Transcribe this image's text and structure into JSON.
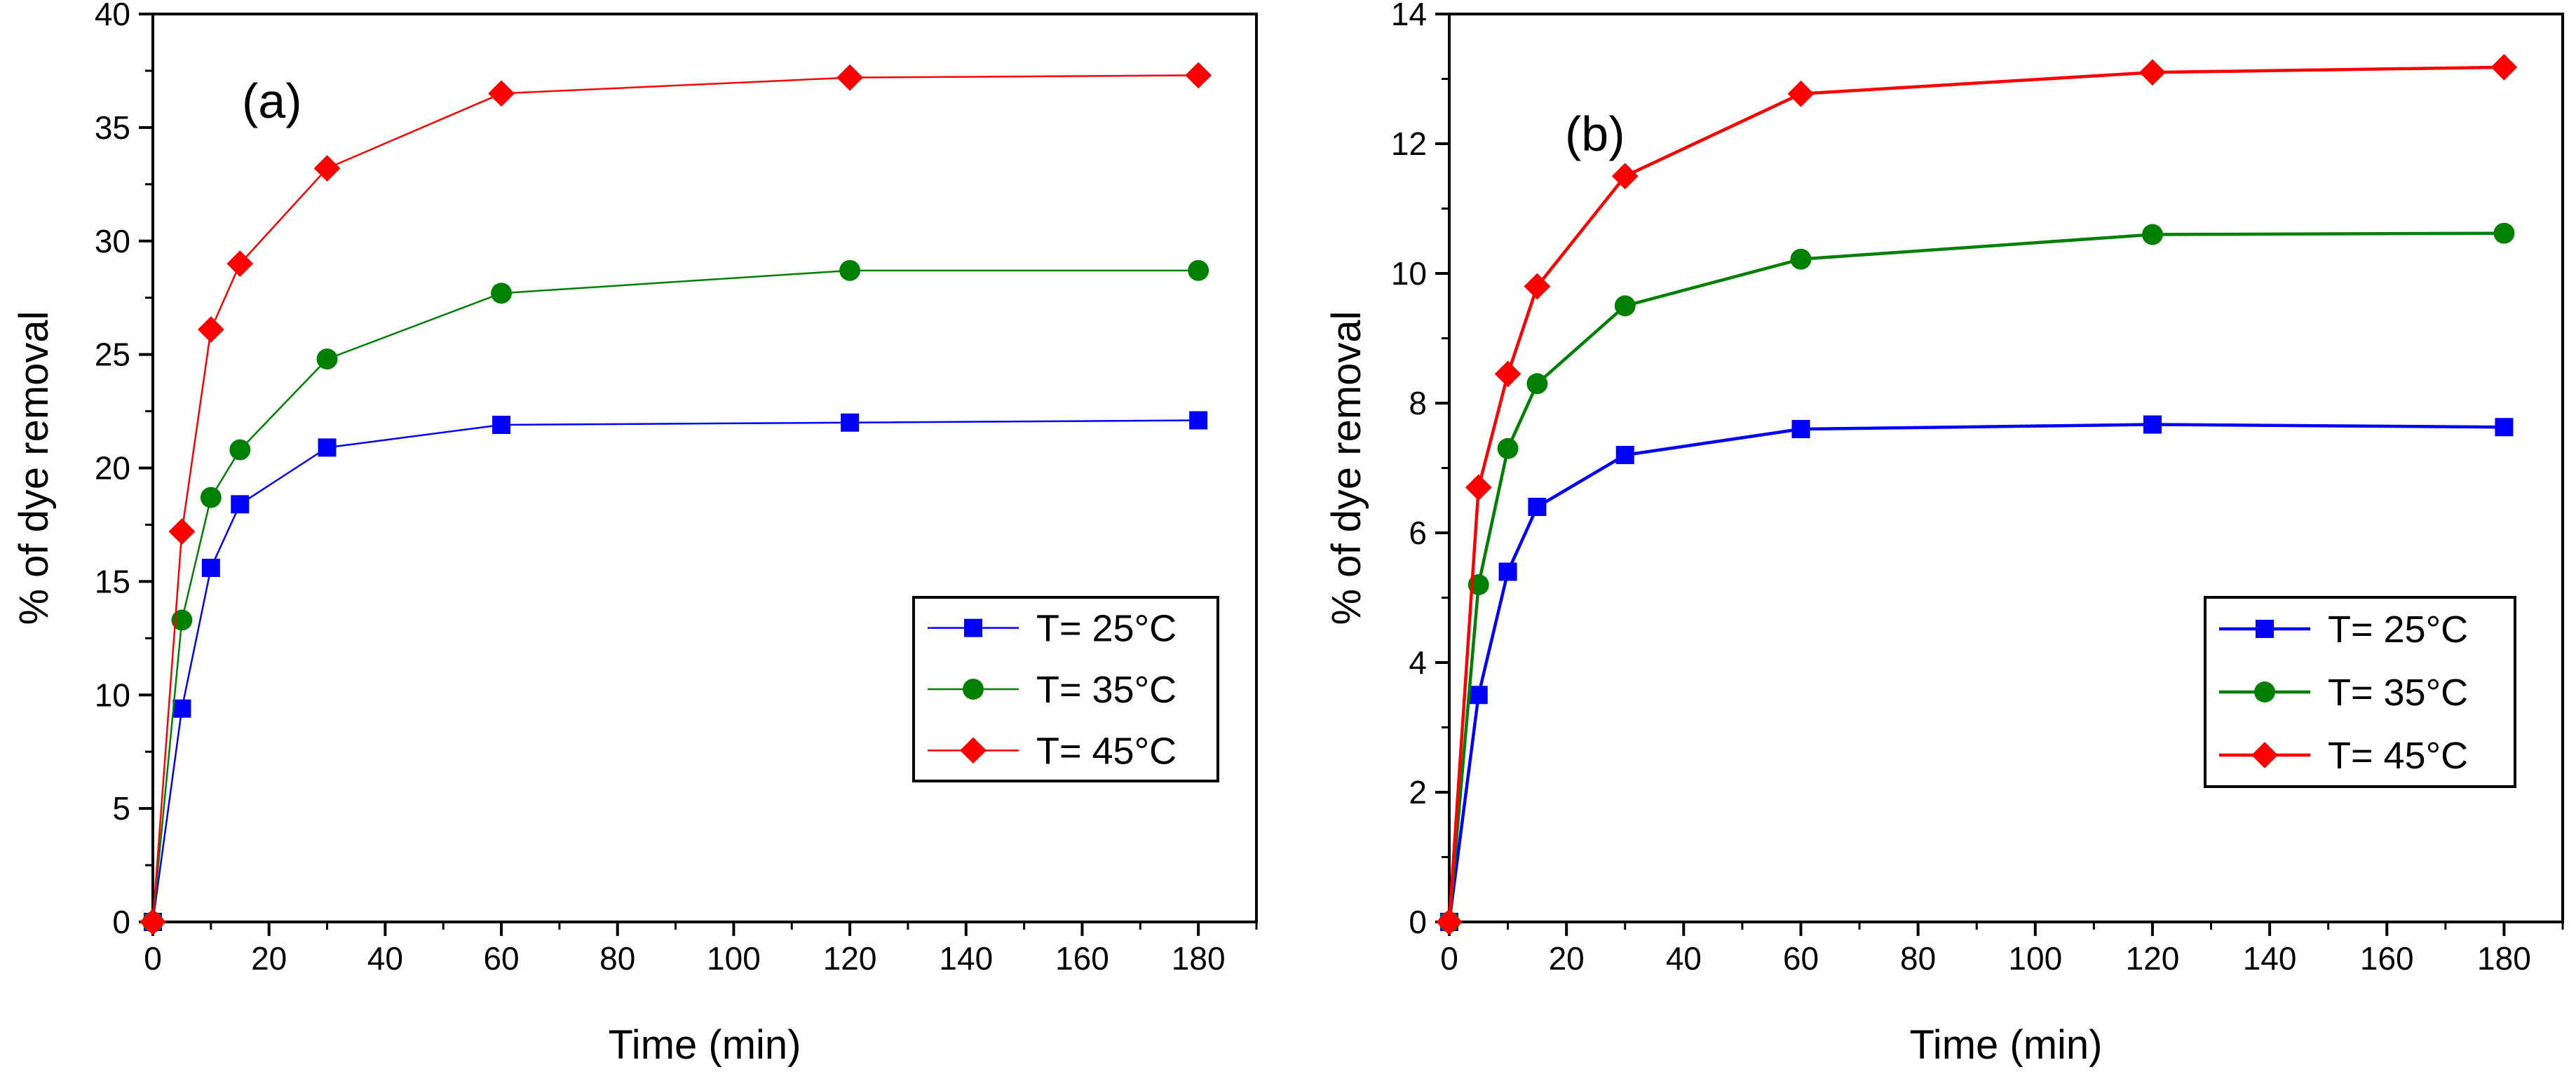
{
  "chart_data": [
    {
      "id": "a",
      "type": "line",
      "panel_label": "(a)",
      "xlabel": "Time (min)",
      "ylabel": "% of dye removal",
      "xlim": [
        0,
        190
      ],
      "ylim": [
        0,
        40
      ],
      "xticks": [
        0,
        20,
        40,
        60,
        80,
        100,
        120,
        140,
        160,
        180
      ],
      "yticks": [
        0,
        5,
        10,
        15,
        20,
        25,
        30,
        35,
        40
      ],
      "legend_position": "center-right",
      "x": [
        0,
        5,
        10,
        15,
        30,
        60,
        120,
        180
      ],
      "series": [
        {
          "name": "T= 25°C",
          "color": "#0000ff",
          "marker": "square",
          "values": [
            0,
            9.4,
            15.6,
            18.4,
            20.9,
            21.9,
            22.0,
            22.1
          ]
        },
        {
          "name": "T= 35°C",
          "color": "#008000",
          "marker": "circle",
          "values": [
            0,
            13.3,
            18.7,
            20.8,
            24.8,
            27.7,
            28.7,
            28.7
          ]
        },
        {
          "name": "T= 45°C",
          "color": "#ff0000",
          "marker": "diamond",
          "values": [
            0,
            17.2,
            26.1,
            29.0,
            33.2,
            36.5,
            37.2,
            37.3
          ]
        }
      ]
    },
    {
      "id": "b",
      "type": "line",
      "panel_label": "(b)",
      "xlabel": "Time (min)",
      "ylabel": "% of dye removal",
      "xlim": [
        0,
        190
      ],
      "ylim": [
        0,
        14
      ],
      "xticks": [
        0,
        20,
        40,
        60,
        80,
        100,
        120,
        140,
        160,
        180
      ],
      "yticks": [
        0,
        2,
        4,
        6,
        8,
        10,
        12,
        14
      ],
      "legend_position": "center-right",
      "x": [
        0,
        5,
        10,
        15,
        30,
        60,
        120,
        180
      ],
      "series": [
        {
          "name": "T= 25°C",
          "color": "#0000ff",
          "marker": "square",
          "values": [
            0,
            3.5,
            5.4,
            6.4,
            7.2,
            7.6,
            7.67,
            7.63
          ]
        },
        {
          "name": "T= 35°C",
          "color": "#008000",
          "marker": "circle",
          "values": [
            0,
            5.2,
            7.3,
            8.3,
            9.5,
            10.22,
            10.6,
            10.62
          ]
        },
        {
          "name": "T= 45°C",
          "color": "#ff0000",
          "marker": "diamond",
          "values": [
            0,
            6.7,
            8.45,
            9.8,
            11.5,
            12.77,
            13.1,
            13.18
          ]
        }
      ]
    }
  ]
}
